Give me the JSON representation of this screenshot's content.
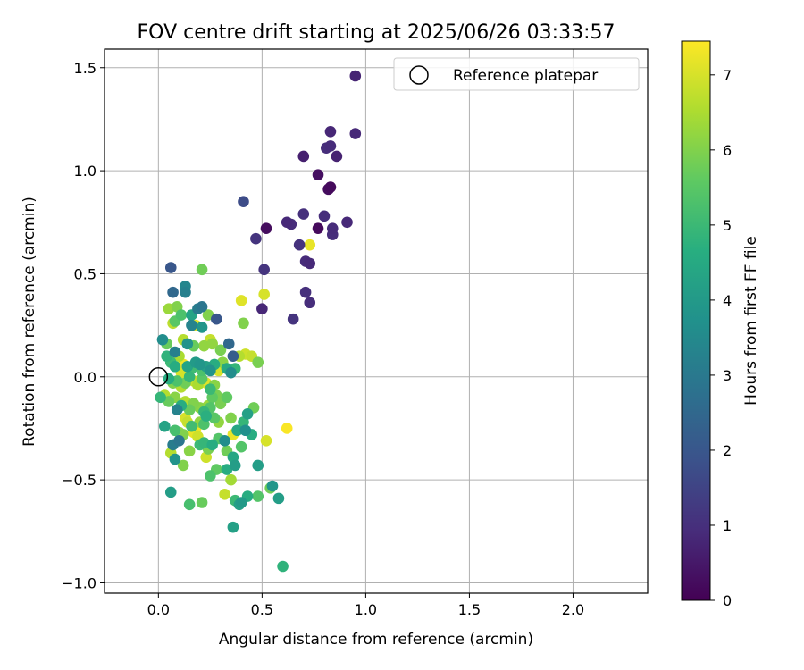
{
  "chart_data": {
    "type": "scatter",
    "title": "FOV centre drift starting at 2025/06/26 03:33:57",
    "xlabel": "Angular distance from reference (arcmin)",
    "ylabel": "Rotation from reference (arcmin)",
    "colorbar_label": "Hours from first FF file",
    "xlim": [
      -0.26,
      2.36
    ],
    "ylim": [
      -1.05,
      1.59
    ],
    "clim": [
      0,
      7.45
    ],
    "x_ticks": [
      0.0,
      0.5,
      1.0,
      1.5,
      2.0
    ],
    "x_tick_labels": [
      "0.0",
      "0.5",
      "1.0",
      "1.5",
      "2.0"
    ],
    "y_ticks": [
      -1.0,
      -0.5,
      0.0,
      0.5,
      1.0,
      1.5
    ],
    "y_tick_labels": [
      "−1.0",
      "−0.5",
      "0.0",
      "0.5",
      "1.0",
      "1.5"
    ],
    "colorbar_ticks": [
      0,
      1,
      2,
      3,
      4,
      5,
      6,
      7
    ],
    "colorbar_tick_labels": [
      "0",
      "1",
      "2",
      "3",
      "4",
      "5",
      "6",
      "7"
    ],
    "colormap": "viridis",
    "grid": true,
    "legend": {
      "placement": "top-right",
      "entries": [
        "Reference platepar"
      ]
    },
    "reference_point": {
      "x": 0.0,
      "y": 0.0,
      "label": "Reference platepar"
    },
    "points": [
      [
        0.95,
        1.46,
        0.75
      ],
      [
        0.83,
        1.19,
        0.8
      ],
      [
        0.95,
        1.18,
        0.85
      ],
      [
        0.83,
        1.12,
        0.9
      ],
      [
        0.81,
        1.11,
        0.95
      ],
      [
        0.7,
        1.07,
        0.65
      ],
      [
        0.86,
        1.07,
        0.7
      ],
      [
        0.77,
        0.98,
        0.3
      ],
      [
        0.83,
        0.92,
        0.2
      ],
      [
        0.82,
        0.91,
        0.25
      ],
      [
        0.41,
        0.85,
        1.7
      ],
      [
        0.62,
        0.75,
        0.85
      ],
      [
        0.64,
        0.74,
        0.9
      ],
      [
        0.7,
        0.79,
        1.0
      ],
      [
        0.8,
        0.78,
        0.95
      ],
      [
        0.91,
        0.75,
        0.85
      ],
      [
        0.84,
        0.72,
        0.9
      ],
      [
        0.84,
        0.69,
        0.95
      ],
      [
        0.77,
        0.72,
        0.2
      ],
      [
        0.52,
        0.72,
        0.25
      ],
      [
        0.47,
        0.67,
        1.1
      ],
      [
        0.68,
        0.64,
        1.05
      ],
      [
        0.71,
        0.56,
        0.9
      ],
      [
        0.73,
        0.55,
        0.85
      ],
      [
        0.73,
        0.64,
        7.2
      ],
      [
        0.51,
        0.52,
        1.1
      ],
      [
        0.06,
        0.53,
        2.0
      ],
      [
        0.71,
        0.41,
        1.0
      ],
      [
        0.73,
        0.36,
        0.95
      ],
      [
        0.65,
        0.28,
        1.1
      ],
      [
        0.5,
        0.33,
        0.8
      ],
      [
        0.4,
        0.37,
        7.1
      ],
      [
        0.51,
        0.4,
        7.0
      ],
      [
        0.21,
        0.52,
        5.8
      ],
      [
        0.13,
        0.44,
        3.4
      ],
      [
        0.13,
        0.41,
        3.2
      ],
      [
        0.07,
        0.41,
        2.5
      ],
      [
        0.09,
        0.34,
        6.0
      ],
      [
        0.05,
        0.33,
        6.3
      ],
      [
        0.19,
        0.33,
        3.1
      ],
      [
        0.21,
        0.34,
        2.9
      ],
      [
        0.24,
        0.3,
        6.0
      ],
      [
        0.28,
        0.28,
        2.0
      ],
      [
        0.11,
        0.3,
        5.3
      ],
      [
        0.16,
        0.3,
        4.3
      ],
      [
        0.07,
        0.26,
        6.7
      ],
      [
        0.16,
        0.25,
        3.3
      ],
      [
        0.18,
        0.25,
        7.1
      ],
      [
        0.21,
        0.24,
        3.9
      ],
      [
        0.41,
        0.26,
        6.0
      ],
      [
        0.08,
        0.27,
        5.5
      ],
      [
        0.12,
        0.18,
        6.6
      ],
      [
        0.02,
        0.18,
        3.6
      ],
      [
        0.04,
        0.16,
        5.7
      ],
      [
        0.14,
        0.16,
        3.8
      ],
      [
        0.17,
        0.15,
        5.7
      ],
      [
        0.22,
        0.15,
        6.2
      ],
      [
        0.25,
        0.18,
        6.8
      ],
      [
        0.26,
        0.16,
        6.2
      ],
      [
        0.34,
        0.16,
        2.5
      ],
      [
        0.3,
        0.13,
        5.9
      ],
      [
        0.36,
        0.1,
        2.2
      ],
      [
        0.39,
        0.1,
        6.6
      ],
      [
        0.42,
        0.11,
        6.9
      ],
      [
        0.45,
        0.1,
        6.8
      ],
      [
        0.48,
        0.07,
        5.9
      ],
      [
        0.04,
        0.1,
        4.8
      ],
      [
        0.08,
        0.12,
        3.2
      ],
      [
        0.1,
        0.1,
        6.5
      ],
      [
        0.06,
        0.07,
        5.0
      ],
      [
        0.08,
        0.05,
        4.6
      ],
      [
        0.11,
        0.02,
        7.0
      ],
      [
        0.12,
        0.06,
        7.3
      ],
      [
        0.14,
        0.05,
        4.3
      ],
      [
        0.16,
        0.04,
        5.1
      ],
      [
        0.18,
        0.07,
        4.0
      ],
      [
        0.2,
        0.06,
        3.9
      ],
      [
        0.21,
        0.03,
        5.3
      ],
      [
        0.23,
        0.05,
        4.2
      ],
      [
        0.25,
        0.03,
        3.8
      ],
      [
        0.27,
        0.06,
        4.6
      ],
      [
        0.29,
        0.03,
        7.0
      ],
      [
        0.31,
        0.07,
        6.1
      ],
      [
        0.33,
        0.04,
        4.5
      ],
      [
        0.35,
        0.02,
        3.6
      ],
      [
        0.37,
        0.04,
        4.9
      ],
      [
        0.05,
        -0.01,
        4.6
      ],
      [
        0.07,
        -0.03,
        6.0
      ],
      [
        0.09,
        -0.02,
        5.3
      ],
      [
        0.11,
        -0.05,
        6.6
      ],
      [
        0.13,
        -0.03,
        5.8
      ],
      [
        0.15,
        0.0,
        4.9
      ],
      [
        0.17,
        -0.02,
        6.8
      ],
      [
        0.19,
        -0.04,
        6.5
      ],
      [
        0.21,
        -0.01,
        5.5
      ],
      [
        0.23,
        -0.03,
        7.1
      ],
      [
        0.25,
        -0.06,
        5.0
      ],
      [
        0.27,
        -0.04,
        6.1
      ],
      [
        0.01,
        -0.1,
        4.9
      ],
      [
        0.03,
        -0.09,
        6.6
      ],
      [
        0.05,
        -0.12,
        5.7
      ],
      [
        0.08,
        -0.1,
        6.1
      ],
      [
        0.09,
        -0.16,
        3.3
      ],
      [
        0.11,
        -0.14,
        4.6
      ],
      [
        0.13,
        -0.12,
        6.6
      ],
      [
        0.15,
        -0.16,
        5.7
      ],
      [
        0.17,
        -0.13,
        6.0
      ],
      [
        0.2,
        -0.15,
        6.1
      ],
      [
        0.22,
        -0.17,
        4.9
      ],
      [
        0.24,
        -0.14,
        6.3
      ],
      [
        0.26,
        -0.1,
        5.6
      ],
      [
        0.28,
        -0.09,
        5.9
      ],
      [
        0.3,
        -0.13,
        5.9
      ],
      [
        0.33,
        -0.1,
        5.6
      ],
      [
        0.25,
        -0.15,
        5.4
      ],
      [
        0.23,
        -0.19,
        4.7
      ],
      [
        0.13,
        -0.2,
        7.0
      ],
      [
        0.14,
        -0.22,
        6.8
      ],
      [
        0.16,
        -0.24,
        5.1
      ],
      [
        0.18,
        -0.25,
        7.3
      ],
      [
        0.2,
        -0.22,
        6.2
      ],
      [
        0.22,
        -0.23,
        5.3
      ],
      [
        0.27,
        -0.2,
        5.5
      ],
      [
        0.29,
        -0.22,
        6.2
      ],
      [
        0.35,
        -0.2,
        6.0
      ],
      [
        0.41,
        -0.22,
        4.9
      ],
      [
        0.43,
        -0.18,
        4.2
      ],
      [
        0.42,
        -0.26,
        3.7
      ],
      [
        0.45,
        -0.28,
        4.6
      ],
      [
        0.46,
        -0.15,
        5.8
      ],
      [
        0.03,
        -0.24,
        4.3
      ],
      [
        0.08,
        -0.26,
        5.2
      ],
      [
        0.1,
        -0.27,
        6.2
      ],
      [
        0.12,
        -0.28,
        6.0
      ],
      [
        0.17,
        -0.27,
        7.2
      ],
      [
        0.19,
        -0.29,
        6.9
      ],
      [
        0.22,
        -0.32,
        4.9
      ],
      [
        0.24,
        -0.35,
        5.9
      ],
      [
        0.26,
        -0.33,
        4.6
      ],
      [
        0.29,
        -0.3,
        5.4
      ],
      [
        0.32,
        -0.31,
        3.6
      ],
      [
        0.36,
        -0.28,
        7.2
      ],
      [
        0.38,
        -0.26,
        4.4
      ],
      [
        0.07,
        -0.33,
        3.1
      ],
      [
        0.1,
        -0.31,
        2.9
      ],
      [
        0.06,
        -0.37,
        6.6
      ],
      [
        0.08,
        -0.4,
        3.8
      ],
      [
        0.15,
        -0.36,
        6.1
      ],
      [
        0.2,
        -0.33,
        5.0
      ],
      [
        0.23,
        -0.39,
        6.9
      ],
      [
        0.33,
        -0.36,
        5.8
      ],
      [
        0.36,
        -0.39,
        4.4
      ],
      [
        0.4,
        -0.34,
        5.4
      ],
      [
        0.52,
        -0.31,
        7.0
      ],
      [
        0.62,
        -0.25,
        7.4
      ],
      [
        0.12,
        -0.43,
        6.0
      ],
      [
        0.25,
        -0.48,
        5.3
      ],
      [
        0.28,
        -0.45,
        5.6
      ],
      [
        0.33,
        -0.45,
        4.6
      ],
      [
        0.35,
        -0.5,
        6.4
      ],
      [
        0.37,
        -0.43,
        4.1
      ],
      [
        0.48,
        -0.43,
        4.1
      ],
      [
        0.32,
        -0.57,
        6.8
      ],
      [
        0.37,
        -0.6,
        5.0
      ],
      [
        0.39,
        -0.62,
        4.2
      ],
      [
        0.4,
        -0.61,
        4.0
      ],
      [
        0.43,
        -0.58,
        4.6
      ],
      [
        0.48,
        -0.58,
        5.4
      ],
      [
        0.54,
        -0.54,
        5.8
      ],
      [
        0.55,
        -0.53,
        3.9
      ],
      [
        0.58,
        -0.59,
        4.1
      ],
      [
        0.06,
        -0.56,
        4.1
      ],
      [
        0.15,
        -0.62,
        5.2
      ],
      [
        0.21,
        -0.61,
        5.7
      ],
      [
        0.36,
        -0.73,
        4.2
      ],
      [
        0.6,
        -0.92,
        4.8
      ]
    ]
  }
}
